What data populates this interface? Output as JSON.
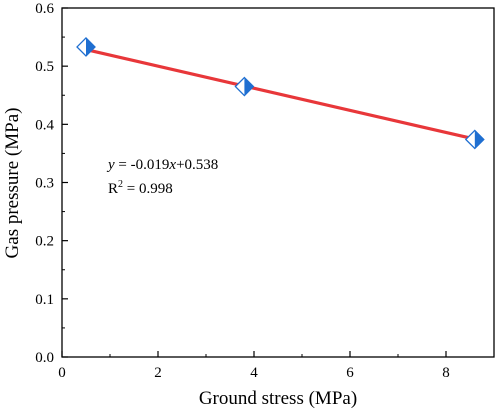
{
  "chart_data": {
    "type": "scatter",
    "xlabel": "Ground stress (MPa)",
    "ylabel": "Gas pressure (MPa)",
    "xlim": [
      0,
      9
    ],
    "ylim": [
      0,
      0.6
    ],
    "x_ticks": [
      0,
      2,
      4,
      6,
      8
    ],
    "x_tick_labels": [
      "0",
      "2",
      "4",
      "6",
      "8"
    ],
    "y_ticks": [
      0.0,
      0.1,
      0.2,
      0.3,
      0.4,
      0.5,
      0.6
    ],
    "y_tick_labels": [
      "0.0",
      "0.1",
      "0.2",
      "0.3",
      "0.4",
      "0.5",
      "0.6"
    ],
    "grid": false,
    "series": [
      {
        "marker": "half-filled-diamond",
        "color": "#1f6fd1",
        "points": [
          {
            "x": 0.5,
            "y": 0.533
          },
          {
            "x": 3.8,
            "y": 0.465
          },
          {
            "x": 8.6,
            "y": 0.374
          }
        ]
      }
    ],
    "fit_line": {
      "color": "#e8373a",
      "slope": -0.019,
      "intercept": 0.538,
      "x_range": [
        0.5,
        8.6
      ]
    },
    "annotations": {
      "equation": {
        "y": "y",
        "rest1": " = -0.019",
        "x": "x",
        "rest2": "+0.538"
      },
      "r2": {
        "base": "R",
        "sup": "2",
        "rest": " = 0.998"
      }
    }
  }
}
